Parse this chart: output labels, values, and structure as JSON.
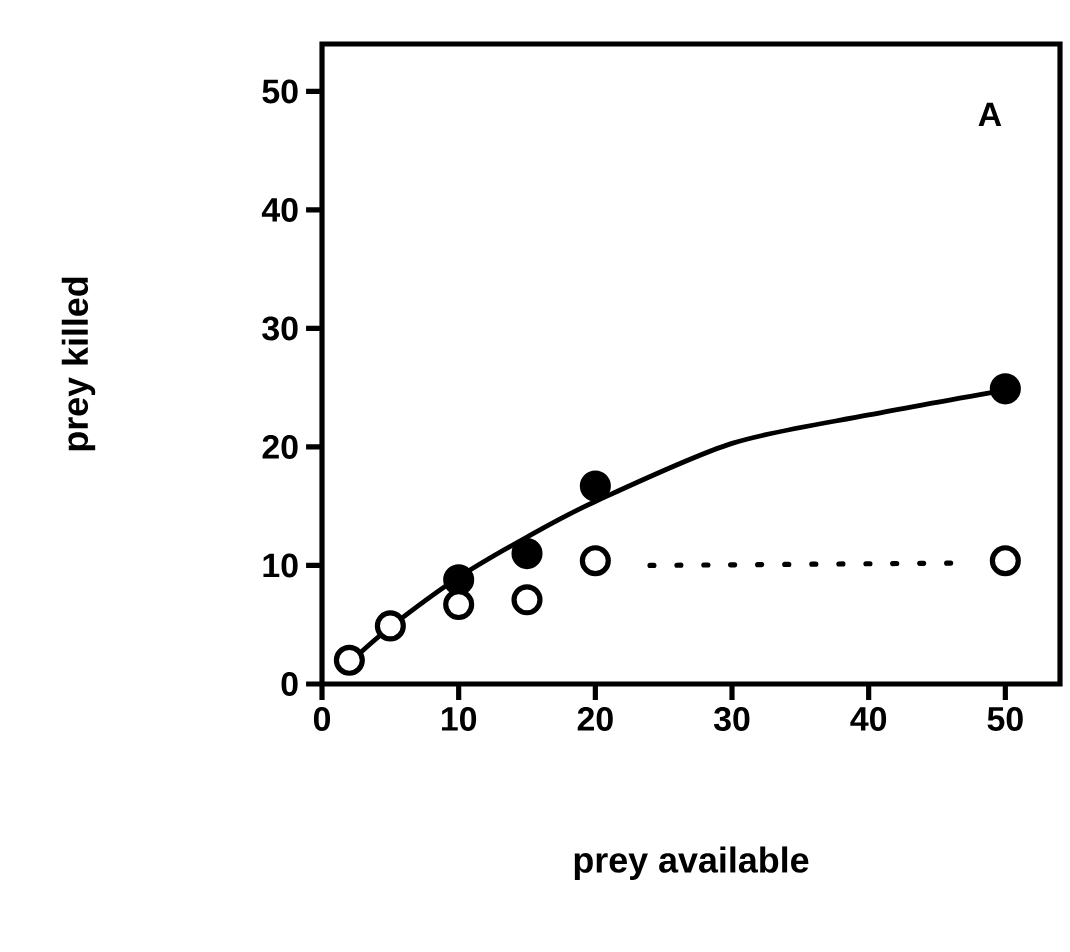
{
  "chart_data": {
    "type": "scatter",
    "xlabel": "prey available",
    "ylabel": "prey killed",
    "annotations": [
      "A"
    ],
    "xlim": [
      0,
      54
    ],
    "ylim": [
      0,
      54
    ],
    "xticks": [
      0,
      10,
      20,
      30,
      40,
      50
    ],
    "yticks": [
      0,
      10,
      20,
      30,
      40,
      50
    ],
    "grid": false,
    "series": [
      {
        "type": "line",
        "color": "#000000",
        "line_style": "solid",
        "x": [
          2,
          5,
          10,
          15,
          20,
          30,
          40,
          50
        ],
        "values": [
          1.8,
          4.8,
          9.0,
          12.4,
          15.4,
          20.3,
          22.7,
          24.8
        ]
      },
      {
        "type": "line",
        "color": "#000000",
        "line_style": "dotted",
        "x": [
          24,
          46
        ],
        "values": [
          10.0,
          10.2
        ]
      },
      {
        "color": "#000000",
        "marker": "circle",
        "x": [
          10,
          15,
          20,
          50
        ],
        "values": [
          8.8,
          11,
          16.7,
          24.9
        ]
      },
      {
        "color": "#ffffff",
        "marker": "circle",
        "x": [
          2,
          5,
          10,
          15,
          20,
          50
        ],
        "values": [
          2.0,
          4.9,
          6.7,
          7.1,
          10.4,
          10.4
        ]
      }
    ]
  }
}
